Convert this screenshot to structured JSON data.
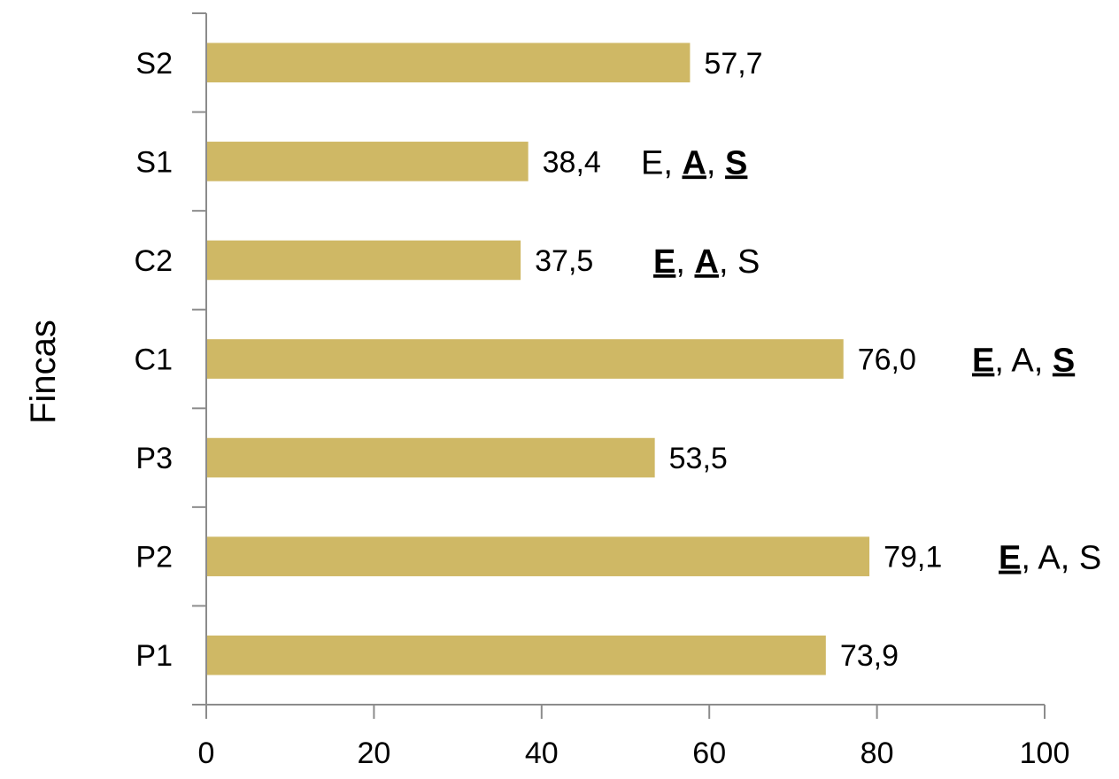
{
  "chart_data": {
    "type": "bar",
    "orientation": "horizontal",
    "categories": [
      "P1",
      "P2",
      "P3",
      "C1",
      "C2",
      "S1",
      "S2"
    ],
    "values": [
      73.9,
      79.1,
      53.5,
      76.0,
      37.5,
      38.4,
      57.7
    ],
    "value_labels": [
      "73,9",
      "79,1",
      "53,5",
      "76,0",
      "37,5",
      "38,4",
      "57,7"
    ],
    "ylabel": "Fincas",
    "xlabel": "",
    "xlim": [
      0,
      100
    ],
    "xticks": [
      0,
      20,
      40,
      60,
      80,
      100
    ],
    "bar_color": "#cfb865",
    "grid": false,
    "annotations": [
      {
        "category": "P2",
        "parts": [
          {
            "text": "E",
            "bold": true
          },
          {
            "text": ", A, S",
            "bold": false
          }
        ]
      },
      {
        "category": "C1",
        "parts": [
          {
            "text": "E",
            "bold": true
          },
          {
            "text": ", A, ",
            "bold": false
          },
          {
            "text": "S",
            "bold": true
          }
        ]
      },
      {
        "category": "C2",
        "parts": [
          {
            "text": "E",
            "bold": true
          },
          {
            "text": ", ",
            "bold": false
          },
          {
            "text": "A",
            "bold": true
          },
          {
            "text": ", S",
            "bold": false
          }
        ]
      },
      {
        "category": "S1",
        "parts": [
          {
            "text": "E, ",
            "bold": false
          },
          {
            "text": "A",
            "bold": true
          },
          {
            "text": ", ",
            "bold": false
          },
          {
            "text": "S",
            "bold": true
          }
        ]
      }
    ]
  }
}
